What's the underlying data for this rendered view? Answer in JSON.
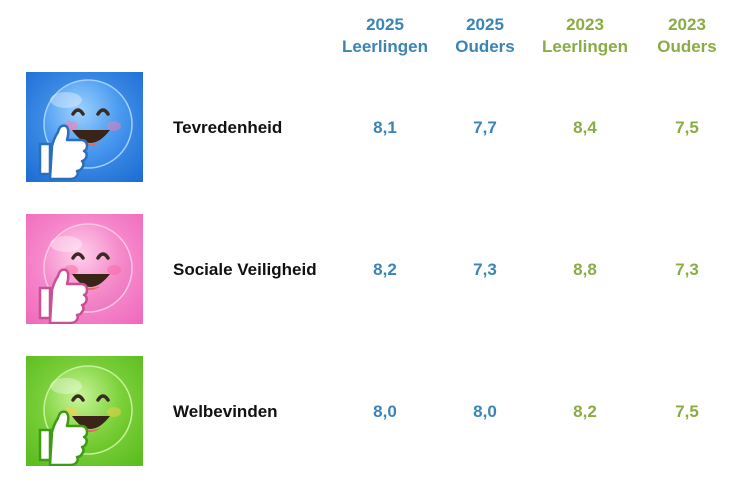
{
  "colors": {
    "col_2025": "#3a84b6",
    "col_2023": "#8aac45",
    "tile_blue": "#2f7fd8",
    "tile_pink": "#f279c3",
    "tile_green": "#6cc62a"
  },
  "headers": [
    {
      "year": "2025",
      "group": "Leerlingen"
    },
    {
      "year": "2025",
      "group": "Ouders"
    },
    {
      "year": "2023",
      "group": "Leerlingen"
    },
    {
      "year": "2023",
      "group": "Ouders"
    }
  ],
  "rows": [
    {
      "icon": "blue-smiley-thumbs-up-icon",
      "label": "Tevredenheid",
      "values": [
        "8,1",
        "7,7",
        "8,4",
        "7,5"
      ]
    },
    {
      "icon": "pink-smiley-thumbs-up-icon",
      "label": "Sociale Veiligheid",
      "values": [
        "8,2",
        "7,3",
        "8,8",
        "7,3"
      ]
    },
    {
      "icon": "green-smiley-thumbs-up-icon",
      "label": "Welbevinden",
      "values": [
        "8,0",
        "8,0",
        "8,2",
        "7,5"
      ]
    }
  ]
}
